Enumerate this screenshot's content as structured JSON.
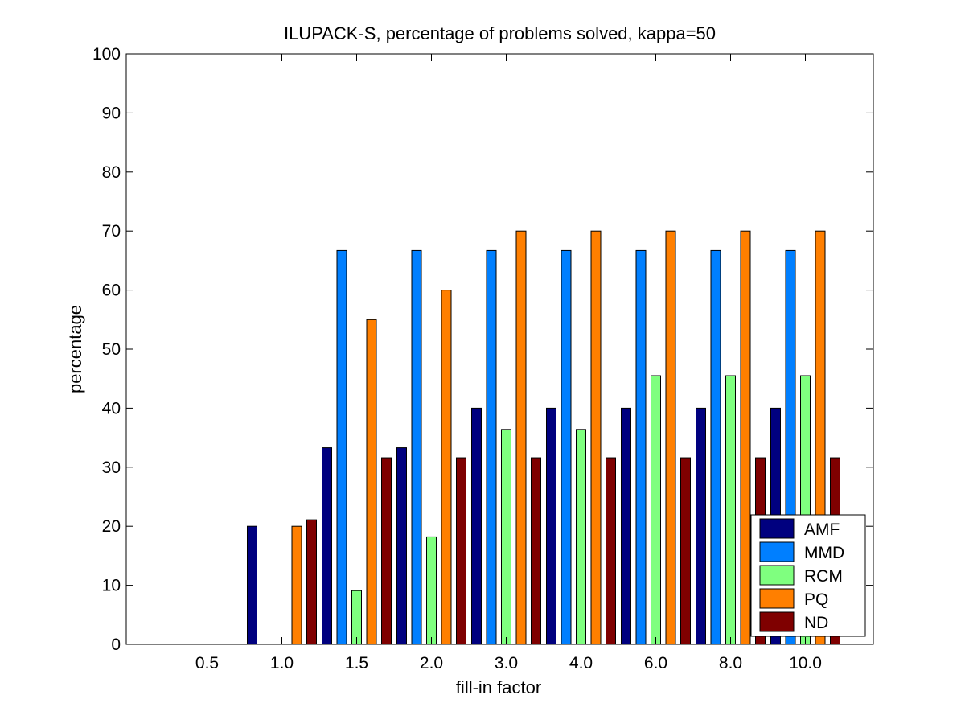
{
  "chart_data": {
    "type": "bar",
    "title": "ILUPACK-S, percentage of problems solved, kappa=50",
    "xlabel": "fill-in factor",
    "ylabel": "percentage",
    "ylim": [
      0,
      100
    ],
    "yticks": [
      0,
      10,
      20,
      30,
      40,
      50,
      60,
      70,
      80,
      90,
      100
    ],
    "categories": [
      "0.5",
      "1.0",
      "1.5",
      "2.0",
      "3.0",
      "4.0",
      "6.0",
      "8.0",
      "10.0"
    ],
    "series": [
      {
        "name": "AMF",
        "color": "#00007f",
        "values": [
          0,
          20,
          33.3,
          33.3,
          40,
          40,
          40,
          40,
          40
        ]
      },
      {
        "name": "MMD",
        "color": "#007fff",
        "values": [
          0,
          0,
          66.7,
          66.7,
          66.7,
          66.7,
          66.7,
          66.7,
          66.7
        ]
      },
      {
        "name": "RCM",
        "color": "#7fff7f",
        "values": [
          0,
          0,
          9.1,
          18.2,
          36.4,
          36.4,
          45.5,
          45.5,
          45.5
        ]
      },
      {
        "name": "PQ",
        "color": "#ff7f00",
        "values": [
          0,
          20,
          55,
          60,
          70,
          70,
          70,
          70,
          70
        ]
      },
      {
        "name": "ND",
        "color": "#7f0000",
        "values": [
          0,
          21.1,
          31.6,
          31.6,
          31.6,
          31.6,
          31.6,
          31.6,
          31.6
        ]
      }
    ],
    "grid": false,
    "legend_position": "bottom-right"
  }
}
